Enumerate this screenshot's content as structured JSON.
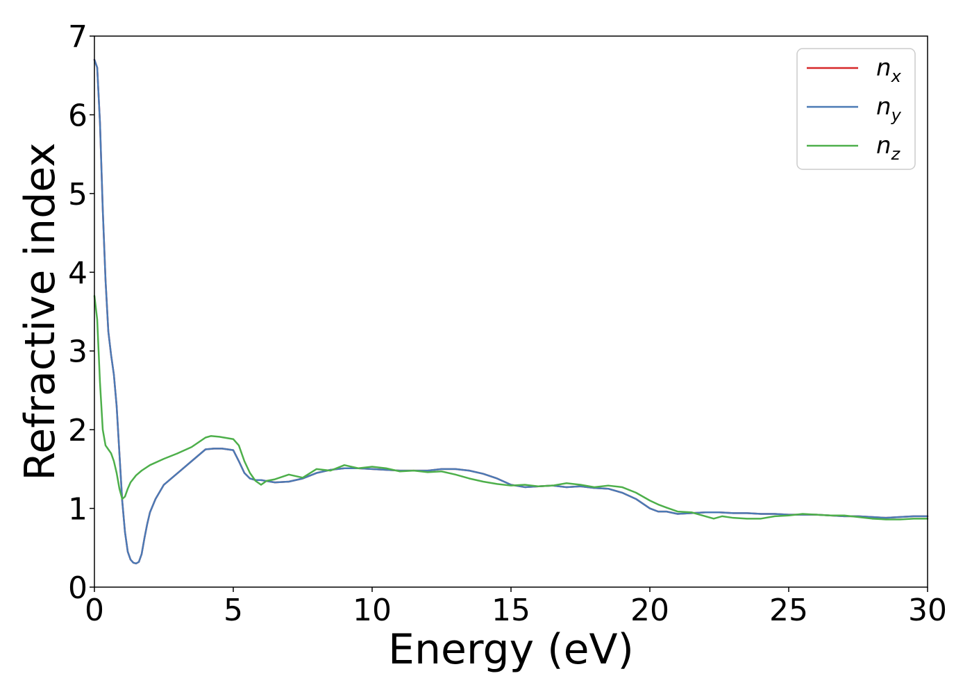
{
  "chart_data": {
    "type": "line",
    "xlabel": "Energy (eV)",
    "ylabel": "Refractive index",
    "xlim": [
      0,
      30
    ],
    "ylim": [
      0,
      7
    ],
    "xticks": [
      0,
      5,
      10,
      15,
      20,
      25,
      30
    ],
    "yticks": [
      0,
      1,
      2,
      3,
      4,
      5,
      6,
      7
    ],
    "grid": false,
    "legend_position": "top-right",
    "series": [
      {
        "name": "n",
        "subscript": "x",
        "color": "#d62728",
        "x": [
          0.0,
          0.1,
          0.2,
          0.3,
          0.4,
          0.5,
          0.6,
          0.7,
          0.8,
          0.9,
          1.0,
          1.1,
          1.2,
          1.3,
          1.4,
          1.5,
          1.6,
          1.7,
          1.8,
          1.9,
          2.0,
          2.2,
          2.5,
          3.0,
          3.5,
          4.0,
          4.3,
          4.6,
          5.0,
          5.2,
          5.4,
          5.6,
          5.8,
          6.0,
          6.5,
          7.0,
          7.5,
          8.0,
          8.5,
          9.0,
          9.5,
          10.0,
          10.5,
          11.0,
          11.5,
          12.0,
          12.5,
          13.0,
          13.5,
          14.0,
          14.5,
          15.0,
          15.5,
          16.0,
          16.5,
          17.0,
          17.5,
          18.0,
          18.5,
          19.0,
          19.5,
          20.0,
          20.3,
          20.6,
          21.0,
          21.5,
          22.0,
          22.5,
          23.0,
          23.5,
          24.0,
          24.5,
          25.0,
          25.5,
          26.0,
          26.5,
          27.0,
          27.5,
          28.0,
          28.5,
          29.0,
          29.5,
          30.0
        ],
        "y": [
          6.7,
          6.6,
          5.9,
          4.8,
          3.9,
          3.25,
          2.95,
          2.7,
          2.3,
          1.7,
          1.1,
          0.7,
          0.45,
          0.35,
          0.31,
          0.3,
          0.32,
          0.42,
          0.62,
          0.8,
          0.95,
          1.12,
          1.3,
          1.45,
          1.6,
          1.75,
          1.76,
          1.76,
          1.74,
          1.6,
          1.45,
          1.38,
          1.36,
          1.36,
          1.33,
          1.34,
          1.38,
          1.45,
          1.49,
          1.51,
          1.51,
          1.5,
          1.49,
          1.48,
          1.48,
          1.48,
          1.5,
          1.5,
          1.48,
          1.44,
          1.38,
          1.3,
          1.27,
          1.28,
          1.29,
          1.27,
          1.28,
          1.26,
          1.25,
          1.2,
          1.12,
          1.0,
          0.96,
          0.96,
          0.93,
          0.94,
          0.95,
          0.95,
          0.94,
          0.94,
          0.93,
          0.93,
          0.92,
          0.92,
          0.92,
          0.91,
          0.9,
          0.9,
          0.89,
          0.88,
          0.89,
          0.9,
          0.9
        ]
      },
      {
        "name": "n",
        "subscript": "y",
        "color": "#4a7ab5",
        "x": [
          0.0,
          0.1,
          0.2,
          0.3,
          0.4,
          0.5,
          0.6,
          0.7,
          0.8,
          0.9,
          1.0,
          1.1,
          1.2,
          1.3,
          1.4,
          1.5,
          1.6,
          1.7,
          1.8,
          1.9,
          2.0,
          2.2,
          2.5,
          3.0,
          3.5,
          4.0,
          4.3,
          4.6,
          5.0,
          5.2,
          5.4,
          5.6,
          5.8,
          6.0,
          6.5,
          7.0,
          7.5,
          8.0,
          8.5,
          9.0,
          9.5,
          10.0,
          10.5,
          11.0,
          11.5,
          12.0,
          12.5,
          13.0,
          13.5,
          14.0,
          14.5,
          15.0,
          15.5,
          16.0,
          16.5,
          17.0,
          17.5,
          18.0,
          18.5,
          19.0,
          19.5,
          20.0,
          20.3,
          20.6,
          21.0,
          21.5,
          22.0,
          22.5,
          23.0,
          23.5,
          24.0,
          24.5,
          25.0,
          25.5,
          26.0,
          26.5,
          27.0,
          27.5,
          28.0,
          28.5,
          29.0,
          29.5,
          30.0
        ],
        "y": [
          6.7,
          6.6,
          5.9,
          4.8,
          3.9,
          3.25,
          2.95,
          2.7,
          2.3,
          1.7,
          1.1,
          0.7,
          0.45,
          0.35,
          0.31,
          0.3,
          0.32,
          0.42,
          0.62,
          0.8,
          0.95,
          1.12,
          1.3,
          1.45,
          1.6,
          1.75,
          1.76,
          1.76,
          1.74,
          1.6,
          1.45,
          1.38,
          1.36,
          1.36,
          1.33,
          1.34,
          1.38,
          1.45,
          1.49,
          1.51,
          1.51,
          1.5,
          1.49,
          1.48,
          1.48,
          1.48,
          1.5,
          1.5,
          1.48,
          1.44,
          1.38,
          1.3,
          1.27,
          1.28,
          1.29,
          1.27,
          1.28,
          1.26,
          1.25,
          1.2,
          1.12,
          1.0,
          0.96,
          0.96,
          0.93,
          0.94,
          0.95,
          0.95,
          0.94,
          0.94,
          0.93,
          0.93,
          0.92,
          0.92,
          0.92,
          0.91,
          0.9,
          0.9,
          0.89,
          0.88,
          0.89,
          0.9,
          0.9
        ]
      },
      {
        "name": "n",
        "subscript": "z",
        "color": "#4daf4a",
        "x": [
          0.0,
          0.1,
          0.2,
          0.3,
          0.4,
          0.5,
          0.6,
          0.7,
          0.8,
          0.9,
          1.0,
          1.1,
          1.2,
          1.3,
          1.5,
          1.7,
          2.0,
          2.5,
          3.0,
          3.5,
          4.0,
          4.2,
          4.5,
          5.0,
          5.2,
          5.4,
          5.6,
          5.8,
          6.0,
          6.2,
          6.5,
          7.0,
          7.5,
          8.0,
          8.5,
          9.0,
          9.5,
          10.0,
          10.5,
          11.0,
          11.5,
          12.0,
          12.5,
          13.0,
          13.5,
          14.0,
          14.5,
          15.0,
          15.5,
          16.0,
          16.5,
          17.0,
          17.5,
          18.0,
          18.5,
          19.0,
          19.5,
          20.0,
          20.3,
          20.6,
          21.0,
          21.5,
          22.0,
          22.3,
          22.6,
          23.0,
          23.5,
          24.0,
          24.5,
          25.0,
          25.5,
          26.0,
          26.5,
          27.0,
          27.5,
          28.0,
          28.5,
          29.0,
          29.5,
          30.0
        ],
        "y": [
          3.7,
          3.4,
          2.6,
          2.0,
          1.8,
          1.75,
          1.7,
          1.6,
          1.45,
          1.25,
          1.12,
          1.15,
          1.25,
          1.33,
          1.42,
          1.48,
          1.55,
          1.63,
          1.7,
          1.78,
          1.9,
          1.92,
          1.91,
          1.88,
          1.8,
          1.6,
          1.45,
          1.35,
          1.3,
          1.35,
          1.37,
          1.43,
          1.39,
          1.5,
          1.48,
          1.55,
          1.51,
          1.53,
          1.51,
          1.47,
          1.48,
          1.46,
          1.47,
          1.43,
          1.38,
          1.34,
          1.31,
          1.29,
          1.3,
          1.28,
          1.29,
          1.32,
          1.3,
          1.27,
          1.29,
          1.27,
          1.2,
          1.1,
          1.05,
          1.01,
          0.96,
          0.95,
          0.9,
          0.87,
          0.9,
          0.88,
          0.87,
          0.87,
          0.9,
          0.91,
          0.93,
          0.92,
          0.91,
          0.91,
          0.89,
          0.87,
          0.86,
          0.86,
          0.87,
          0.87
        ]
      }
    ]
  }
}
